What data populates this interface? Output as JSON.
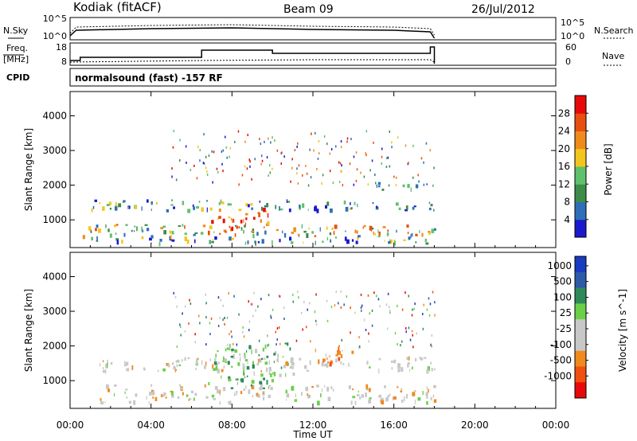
{
  "header": {
    "station": "Kodiak (fitACF)",
    "beam": "Beam 09",
    "date": "26/Jul/2012"
  },
  "top_panels": {
    "nsky_label": "N.Sky",
    "nsky_ticks": [
      "10^5",
      "10^0"
    ],
    "nsearch_label": "N.Search",
    "freq_label": "Freq.",
    "freq_unit": "[MHz]",
    "freq_ticks": [
      "18",
      "8"
    ],
    "nave_label": "Nave",
    "nave_ticks": [
      "60",
      "0"
    ],
    "cpid_label": "CPID",
    "cpid_text": "normalsound (fast) -157 RF"
  },
  "colors": {
    "power": [
      "#1a1acd",
      "#2e6fb8",
      "#3d8c4a",
      "#5fc26b",
      "#f2c61e",
      "#f08a1c",
      "#e85010",
      "#e80a0a"
    ],
    "velocity": [
      "#e80a0a",
      "#f05010",
      "#f08a1c",
      "#c8c8c8",
      "#c8c8c8",
      "#6ad048",
      "#2e8a5a",
      "#2e5aa8",
      "#1a3ac0"
    ]
  },
  "chart_data": [
    {
      "type": "heatmap",
      "title": "",
      "xlabel": "Time UT",
      "ylabel": "Slant Range [km]",
      "xlim": [
        "00:00",
        "24:00"
      ],
      "ylim": [
        200,
        4700
      ],
      "x_tick_labels": [
        "00:00",
        "04:00",
        "08:00",
        "12:00",
        "16:00",
        "20:00",
        "00:00"
      ],
      "y_tick_labels": [
        "1000",
        "2000",
        "3000",
        "4000"
      ],
      "colorbar_label": "Power [dB]",
      "colorbar_ticks": [
        "4",
        "8",
        "12",
        "16",
        "20",
        "24",
        "28"
      ],
      "data_end_time": "18:00",
      "echo_bands": [
        {
          "t_start": 0.8,
          "t_end": 18.0,
          "r_min": 350,
          "r_max": 550,
          "level": "4-12 dB"
        },
        {
          "t_start": 0.5,
          "t_end": 18.0,
          "r_min": 550,
          "r_max": 900,
          "level": "8-20 dB"
        },
        {
          "t_start": 1.0,
          "t_end": 18.0,
          "r_min": 1300,
          "r_max": 1600,
          "level": "8-16 dB"
        },
        {
          "t_start": 6.8,
          "t_end": 9.8,
          "r_min": 800,
          "r_max": 1400,
          "level": "20-28 dB"
        },
        {
          "t_start": 15.0,
          "t_end": 18.0,
          "r_min": 1900,
          "r_max": 2100,
          "level": "4-12 dB"
        }
      ]
    },
    {
      "type": "heatmap",
      "title": "",
      "xlabel": "Time UT",
      "ylabel": "Slant Range [km]",
      "xlim": [
        "00:00",
        "24:00"
      ],
      "ylim": [
        200,
        4700
      ],
      "x_tick_labels": [
        "00:00",
        "04:00",
        "08:00",
        "12:00",
        "16:00",
        "20:00",
        "00:00"
      ],
      "y_tick_labels": [
        "1000",
        "2000",
        "3000",
        "4000"
      ],
      "colorbar_label": "Velocity [m s^-1]",
      "colorbar_ticks": [
        "1000",
        "500",
        "100",
        "25",
        "-25",
        "-100",
        "-500",
        "-1000"
      ],
      "data_end_time": "18:00",
      "echo_bands": [
        {
          "t_start": 0.5,
          "t_end": 18.0,
          "r_min": 400,
          "r_max": 900,
          "level": "-25 to 25 m/s"
        },
        {
          "t_start": 1.0,
          "t_end": 18.0,
          "r_min": 1300,
          "r_max": 1700,
          "level": "-25 to 25 m/s"
        },
        {
          "t_start": 6.8,
          "t_end": 10.0,
          "r_min": 800,
          "r_max": 1200,
          "level": "100 to 500 m/s"
        },
        {
          "t_start": 7.0,
          "t_end": 11.0,
          "r_min": 1200,
          "r_max": 2100,
          "level": "100 to 500 m/s"
        },
        {
          "t_start": 12.0,
          "t_end": 14.5,
          "r_min": 1500,
          "r_max": 2000,
          "level": "-500 to -100 m/s"
        }
      ]
    }
  ]
}
